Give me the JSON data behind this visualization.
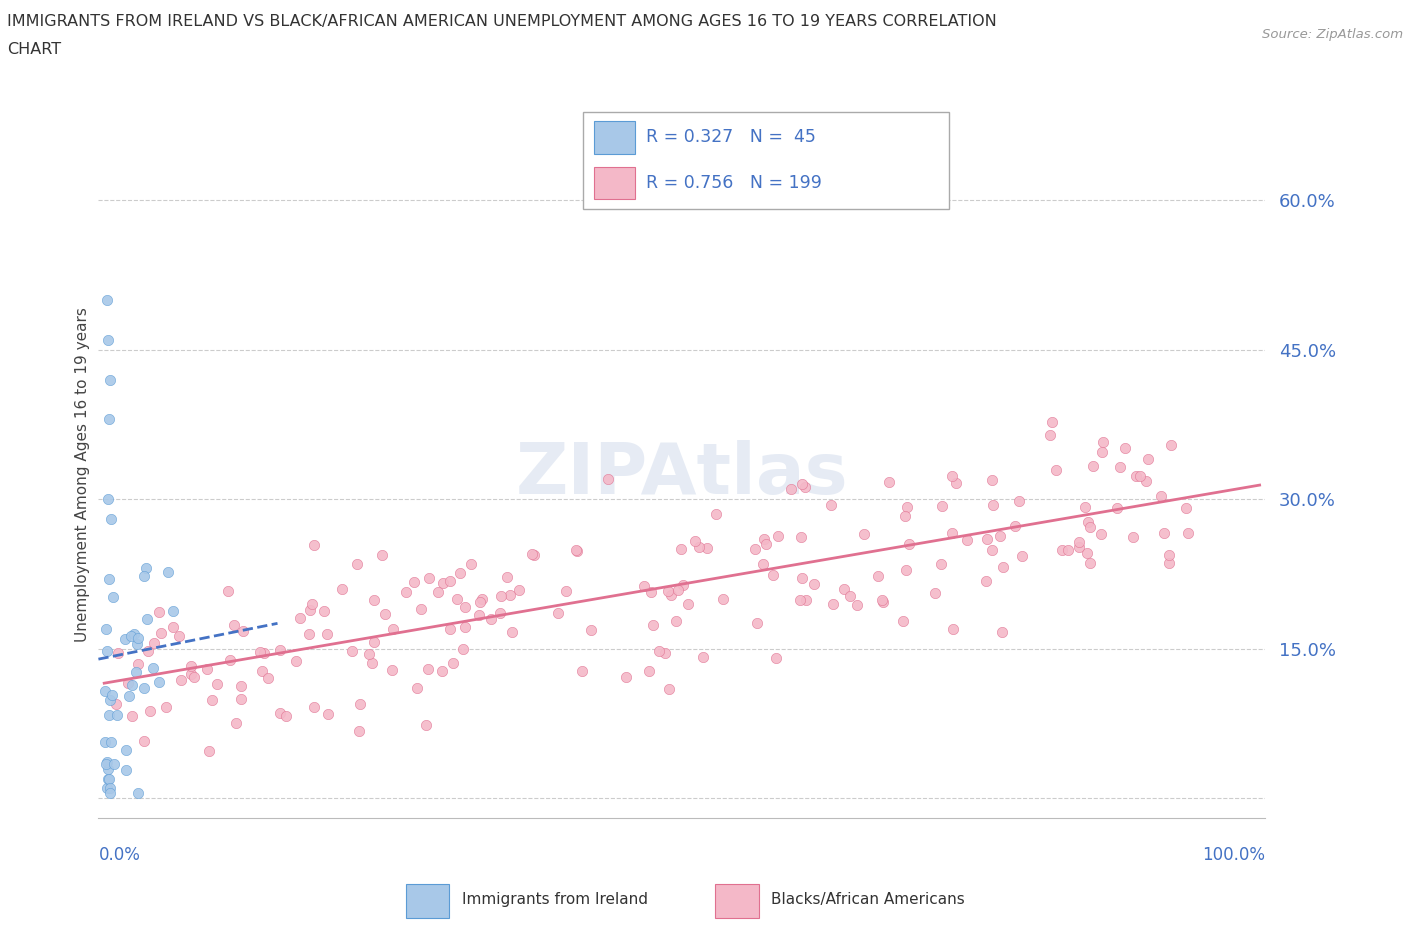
{
  "title_line1": "IMMIGRANTS FROM IRELAND VS BLACK/AFRICAN AMERICAN UNEMPLOYMENT AMONG AGES 16 TO 19 YEARS CORRELATION",
  "title_line2": "CHART",
  "source": "Source: ZipAtlas.com",
  "ylabel": "Unemployment Among Ages 16 to 19 years",
  "watermark": "ZIPAtlas",
  "ireland_color": "#a8c8e8",
  "ireland_edge": "#5b9bd5",
  "black_color": "#f4b8c8",
  "black_edge": "#e07090",
  "ireland_trend_color": "#4472c4",
  "black_trend_color": "#e07090",
  "background_color": "#ffffff",
  "grid_color": "#cccccc",
  "title_color": "#333333",
  "axis_label_color": "#4472c4",
  "legend_text_color": "#4472c4",
  "source_color": "#999999",
  "ytick_vals": [
    0.0,
    0.15,
    0.3,
    0.45,
    0.6
  ],
  "ytick_labels": [
    "",
    "15.0%",
    "30.0%",
    "45.0%",
    "60.0%"
  ],
  "ireland_R": 0.327,
  "ireland_N": 45,
  "black_R": 0.756,
  "black_N": 199
}
